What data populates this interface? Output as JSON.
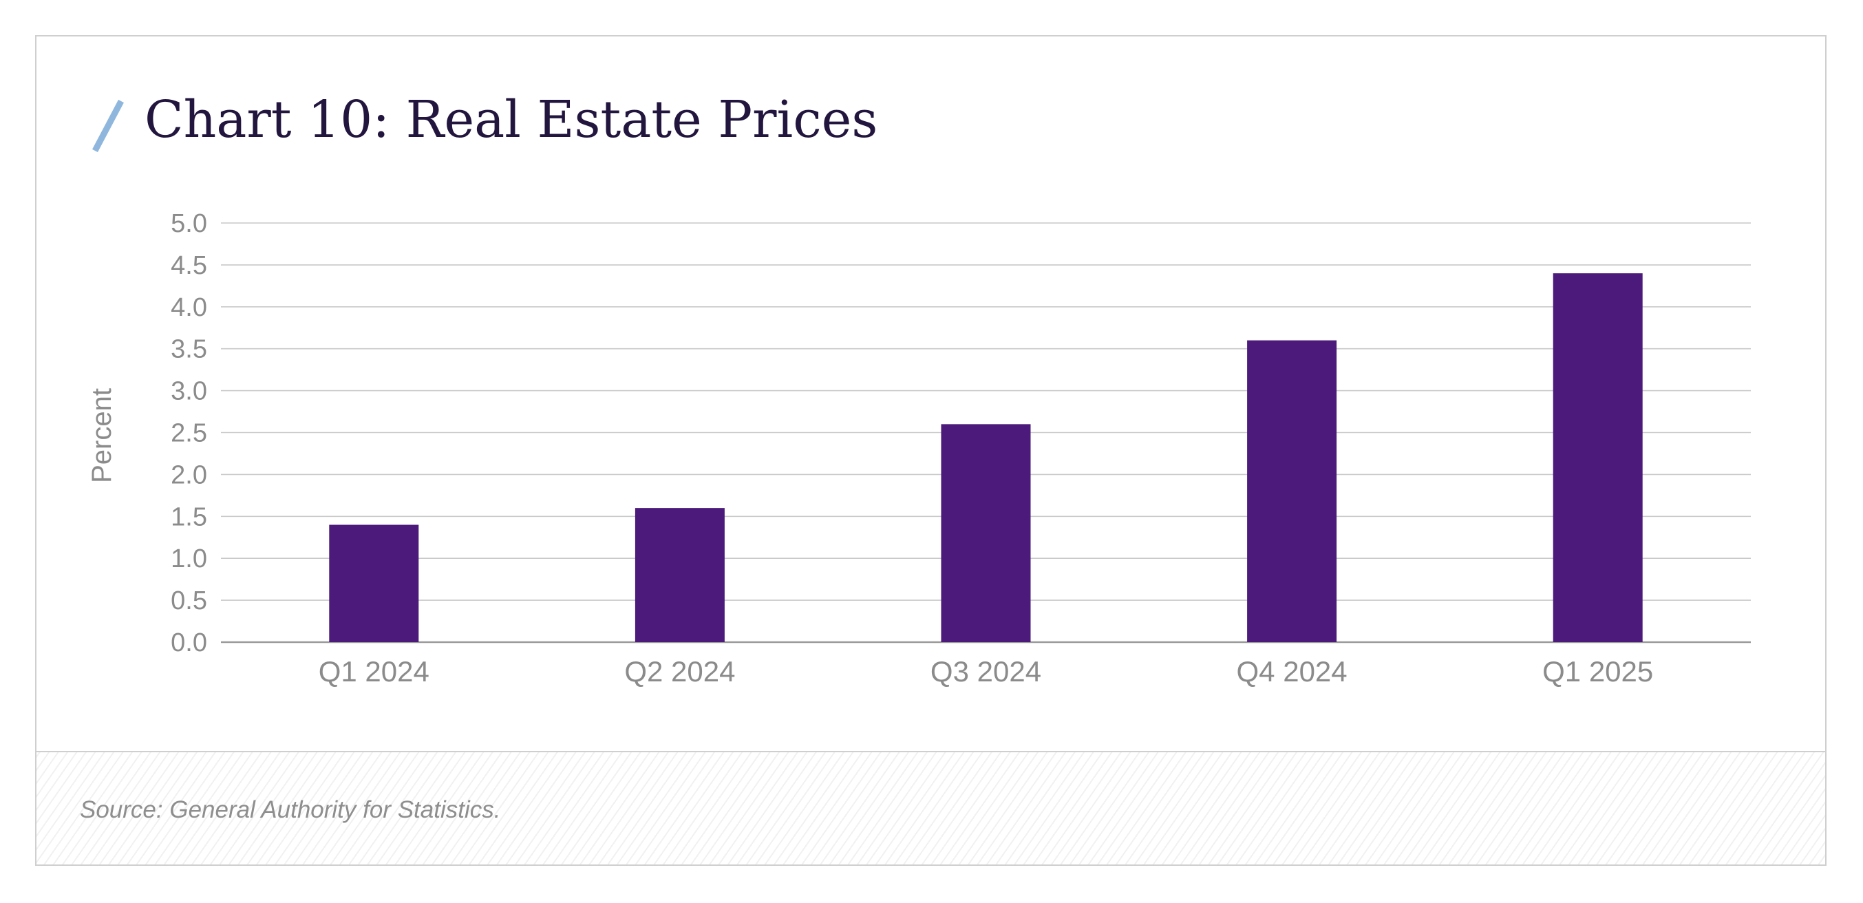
{
  "header": {
    "title": "Chart 10: Real Estate Prices"
  },
  "colors": {
    "bar": "#4b1a7b",
    "accent_slash": "#8fb7dd",
    "title": "#22163f",
    "grid": "#c9c9c9",
    "axis_text": "#8b8b8b"
  },
  "chart_data": {
    "type": "bar",
    "title": "Chart 10: Real Estate Prices",
    "categories": [
      "Q1 2024",
      "Q2 2024",
      "Q3 2024",
      "Q4 2024",
      "Q1 2025"
    ],
    "values": [
      1.4,
      1.6,
      2.6,
      3.6,
      4.4
    ],
    "xlabel": "",
    "ylabel": "Percent",
    "ylim": [
      0,
      5.0
    ],
    "yticks": [
      "0.0",
      "0.5",
      "1.0",
      "1.5",
      "2.0",
      "2.5",
      "3.0",
      "3.5",
      "4.0",
      "4.5",
      "5.0"
    ],
    "grid": true,
    "legend": "none"
  },
  "footer": {
    "source": "Source: General Authority for Statistics."
  }
}
